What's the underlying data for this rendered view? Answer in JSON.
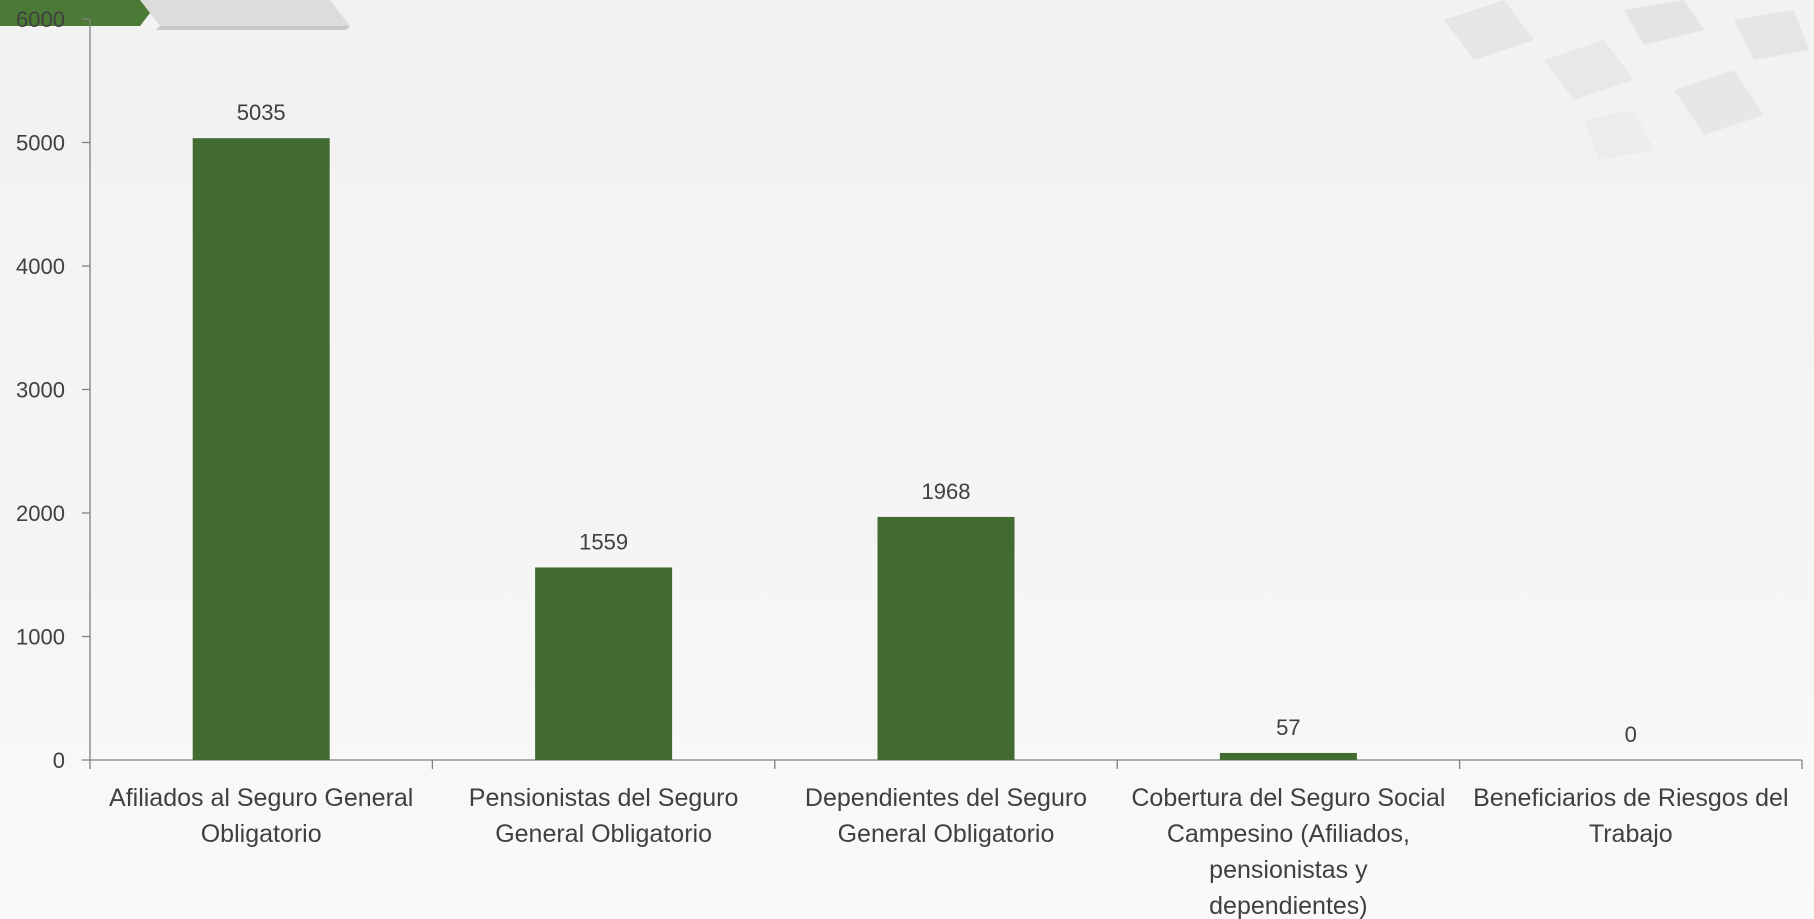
{
  "chart_data": {
    "type": "bar",
    "categories": [
      [
        "Afiliados al Seguro General",
        "Obligatorio"
      ],
      [
        "Pensionistas del Seguro",
        "General Obligatorio"
      ],
      [
        "Dependientes del Seguro",
        "General Obligatorio"
      ],
      [
        "Cobertura del Seguro Social",
        "Campesino (Afiliados,",
        "pensionistas y",
        "dependientes)"
      ],
      [
        "Beneficiarios de Riesgos del",
        "Trabajo"
      ]
    ],
    "values": [
      5035,
      1559,
      1968,
      57,
      0
    ],
    "data_labels": [
      "5035",
      "1559",
      "1968",
      "57",
      "0"
    ],
    "ylim": [
      0,
      6000
    ],
    "yticks": [
      0,
      1000,
      2000,
      3000,
      4000,
      5000,
      6000
    ],
    "title": "",
    "xlabel": "",
    "ylabel": "",
    "grid": false,
    "legend": "none",
    "bar_color": "#416B30"
  },
  "decor": {
    "header_tab_color": "#4a7a35",
    "header_tab_accent": "#dcdcdc"
  }
}
